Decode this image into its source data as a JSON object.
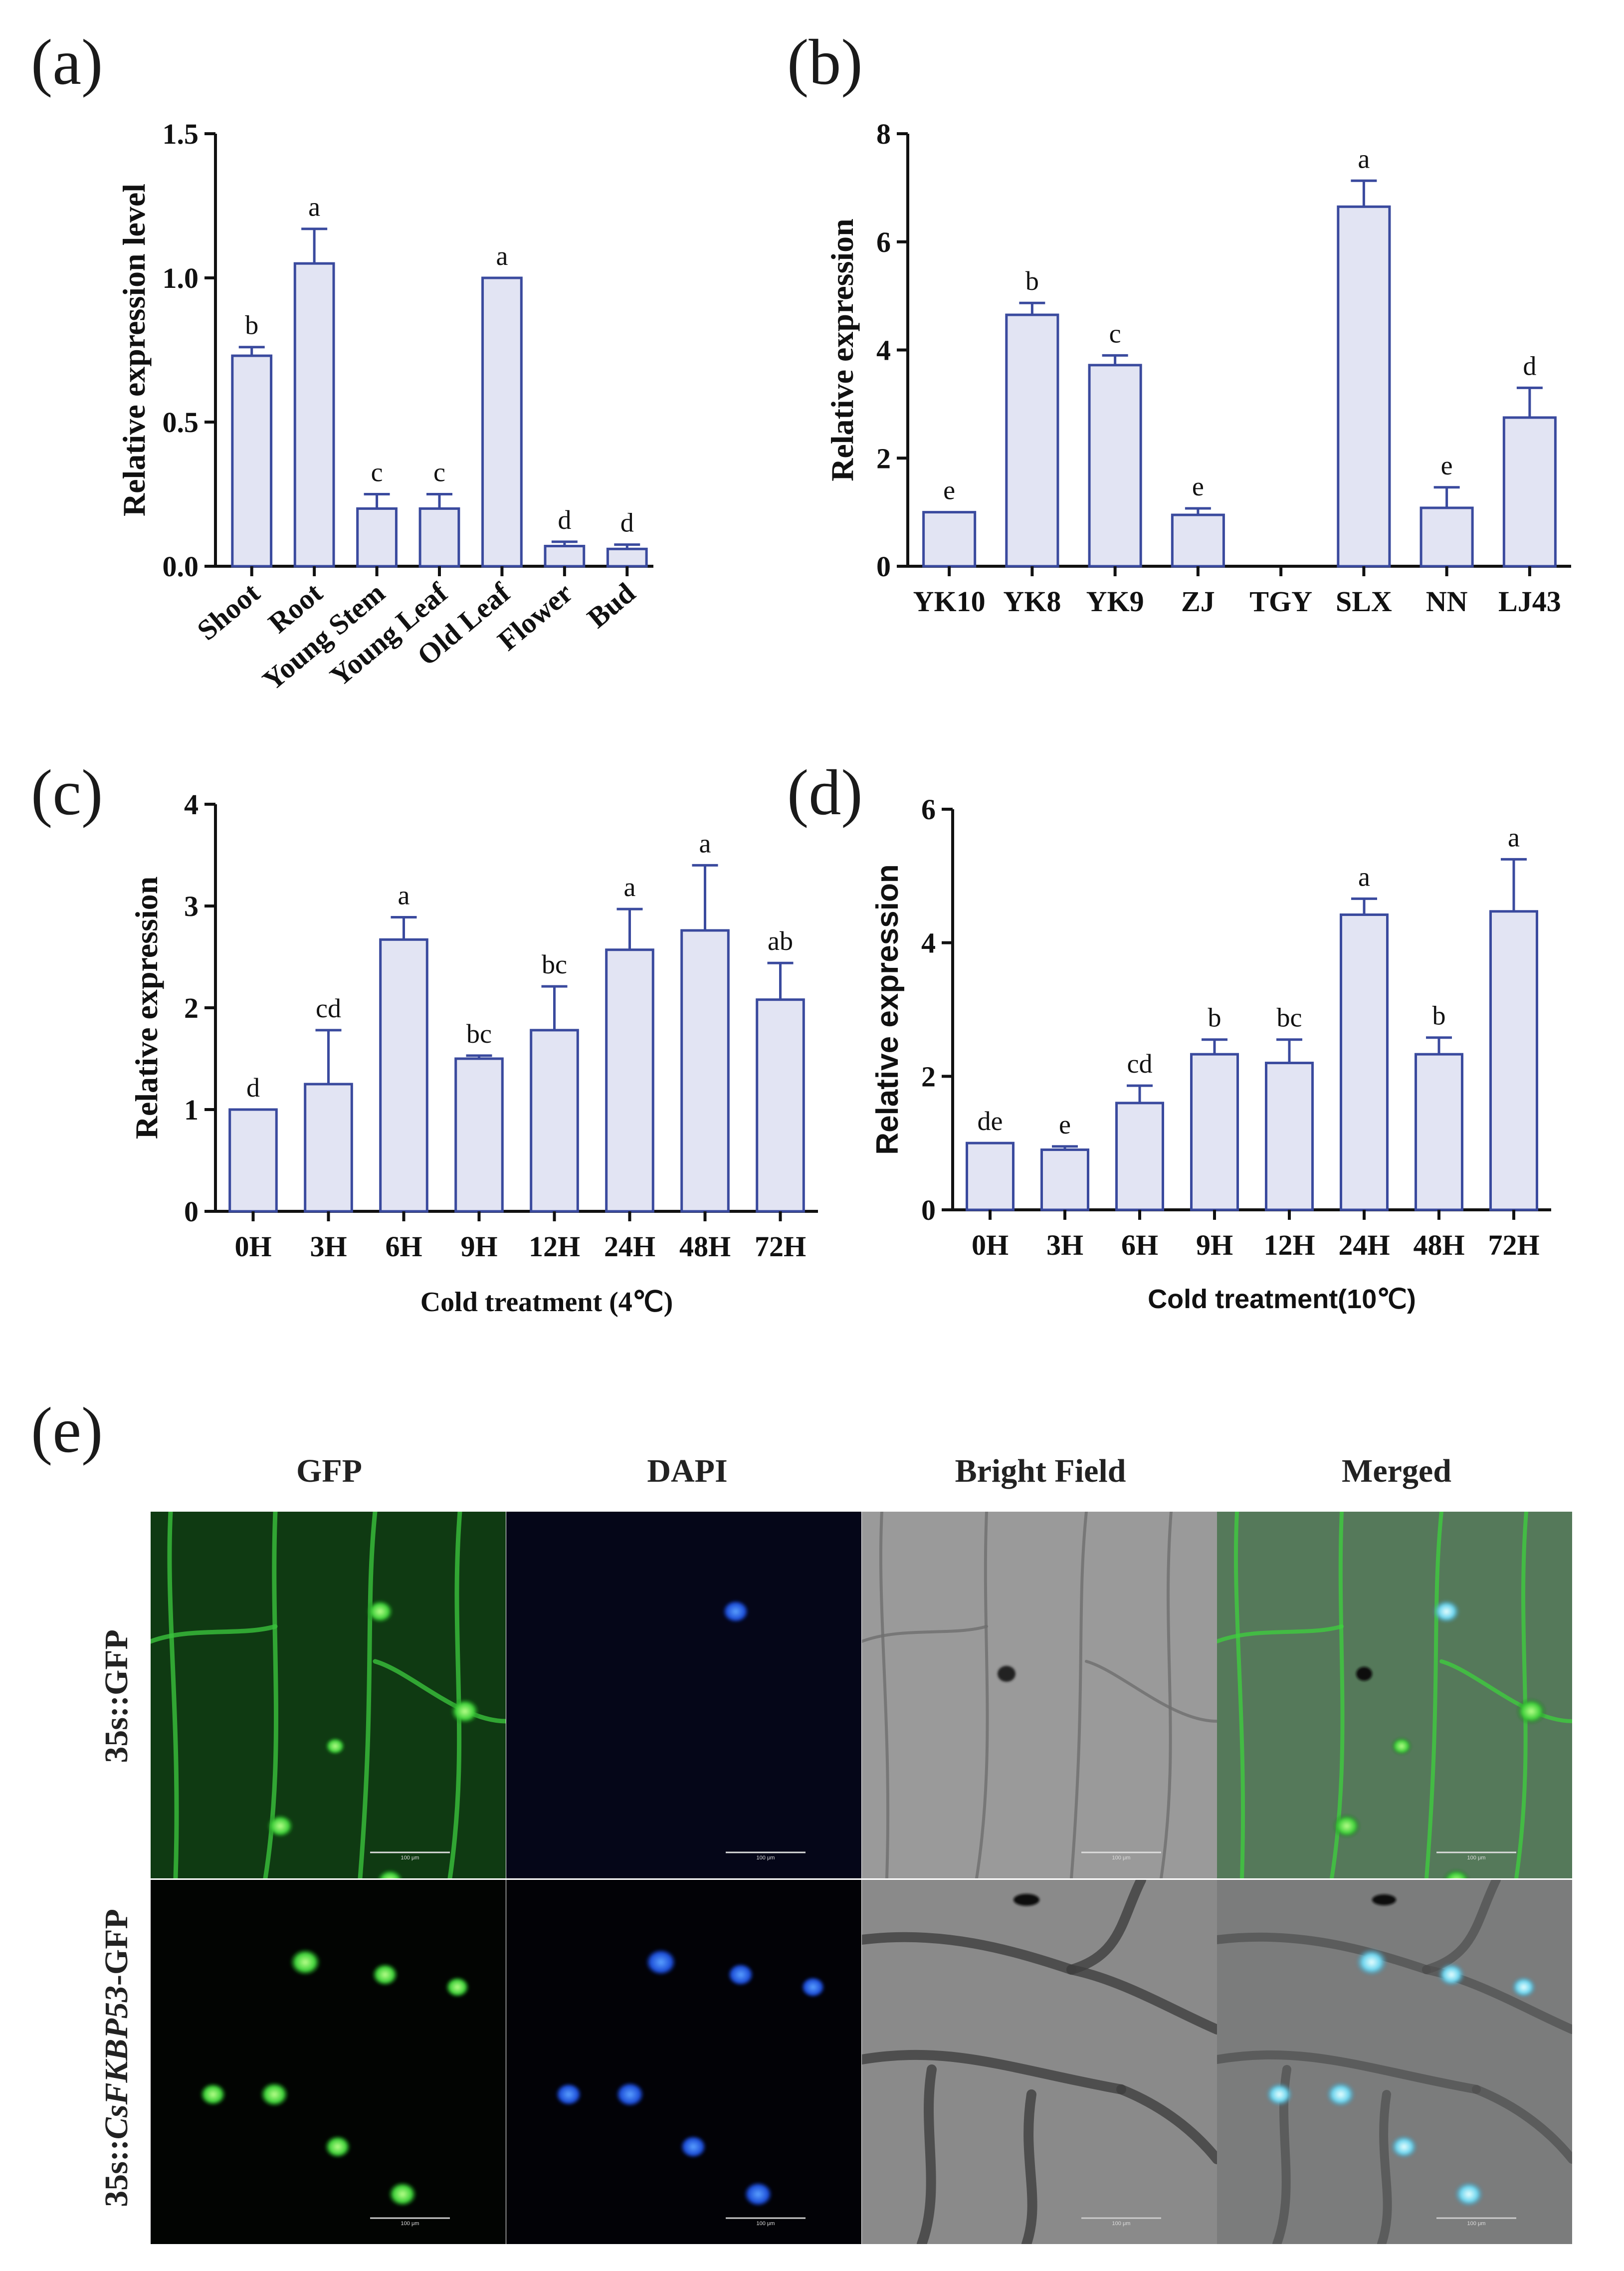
{
  "colors": {
    "bar_fill": "#e2e4f3",
    "bar_stroke": "#3a4a9e",
    "axis": "#111111"
  },
  "panel_labels": [
    "(a)",
    "(b)",
    "(c)",
    "(d)",
    "(e)"
  ],
  "chart_data": [
    {
      "type": "bar",
      "panel": "(a)",
      "ylabel": "Relative expression level",
      "xlabel": "",
      "ylim": [
        0,
        1.5
      ],
      "yticks": [
        "0.0",
        "0.5",
        "1.0",
        "1.5"
      ],
      "categories": [
        "Shoot",
        "Root",
        "Young Stem",
        "Young Leaf",
        "Old Leaf",
        "Flower",
        "Bud"
      ],
      "values": [
        0.73,
        1.05,
        0.2,
        0.2,
        1.0,
        0.07,
        0.06
      ],
      "errors": [
        0.03,
        0.12,
        0.05,
        0.05,
        0.0,
        0.015,
        0.015
      ],
      "significance": [
        "b",
        "a",
        "c",
        "c",
        "a",
        "d",
        "d"
      ]
    },
    {
      "type": "bar",
      "panel": "(b)",
      "ylabel": "Relative expression",
      "xlabel": "",
      "ylim": [
        0,
        8
      ],
      "yticks": [
        "0",
        "2",
        "4",
        "6",
        "8"
      ],
      "categories": [
        "YK10",
        "YK8",
        "YK9",
        "ZJ",
        "TGY",
        "SLX",
        "NN",
        "LJ43"
      ],
      "values": [
        1.0,
        4.65,
        3.72,
        0.95,
        0.0,
        6.65,
        1.08,
        2.75
      ],
      "errors": [
        0.0,
        0.22,
        0.18,
        0.12,
        0.0,
        0.48,
        0.38,
        0.55
      ],
      "significance": [
        "e",
        "b",
        "c",
        "e",
        "",
        "a",
        "e",
        "d"
      ]
    },
    {
      "type": "bar",
      "panel": "(c)",
      "ylabel": "Relative expression",
      "xlabel": "Cold treatment (4℃)",
      "ylim": [
        0,
        4
      ],
      "yticks": [
        "0",
        "1",
        "2",
        "3",
        "4"
      ],
      "categories": [
        "0H",
        "3H",
        "6H",
        "9H",
        "12H",
        "24H",
        "48H",
        "72H"
      ],
      "values": [
        1.0,
        1.25,
        2.67,
        1.5,
        1.78,
        2.57,
        2.76,
        2.08
      ],
      "errors": [
        0.0,
        0.53,
        0.22,
        0.03,
        0.43,
        0.4,
        0.64,
        0.36
      ],
      "significance": [
        "d",
        "cd",
        "a",
        "bc",
        "bc",
        "a",
        "a",
        "ab"
      ]
    },
    {
      "type": "bar",
      "panel": "(d)",
      "ylabel": "Relative expression",
      "xlabel": "Cold treatment(10℃)",
      "ylim": [
        0,
        6
      ],
      "yticks": [
        "0",
        "2",
        "4",
        "6"
      ],
      "categories": [
        "0H",
        "3H",
        "6H",
        "9H",
        "12H",
        "24H",
        "48H",
        "72H"
      ],
      "values": [
        1.0,
        0.9,
        1.6,
        2.33,
        2.2,
        4.42,
        2.33,
        4.47
      ],
      "errors": [
        0.0,
        0.05,
        0.26,
        0.22,
        0.35,
        0.24,
        0.25,
        0.78
      ],
      "significance": [
        "de",
        "e",
        "cd",
        "b",
        "bc",
        "a",
        "b",
        "a"
      ]
    }
  ],
  "micrographs": {
    "columns": [
      "GFP",
      "DAPI",
      "Bright Field",
      "Merged"
    ],
    "rows": [
      {
        "prefix": "35s::GFP",
        "italic": "",
        "suffix": ""
      },
      {
        "prefix": "35s::",
        "italic": "CsFKBP53",
        "suffix": "-GFP"
      }
    ],
    "scale_bar_label": "100 μm"
  }
}
